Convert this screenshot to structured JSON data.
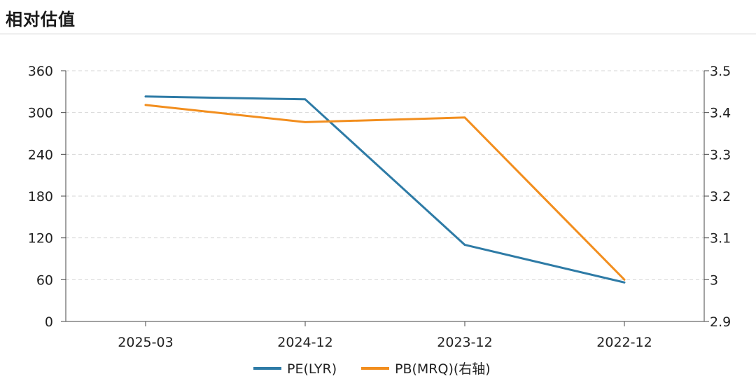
{
  "header": {
    "title": "相对估值"
  },
  "chart_data": {
    "type": "line",
    "categories": [
      "2025-03",
      "2024-12",
      "2023-12",
      "2022-12"
    ],
    "series": [
      {
        "name": "PE(LYR)",
        "axis": "left",
        "color": "#2e7ba6",
        "values": [
          323,
          319,
          110,
          56
        ]
      },
      {
        "name": "PB(MRQ)(右轴)",
        "axis": "right",
        "color": "#f28e1e",
        "values": [
          3.418,
          3.377,
          3.388,
          3.0
        ]
      }
    ],
    "y_left": {
      "min": 0,
      "max": 360,
      "ticks": [
        0,
        60,
        120,
        180,
        240,
        300,
        360
      ],
      "tick_labels": [
        "0",
        "60",
        "120",
        "180",
        "240",
        "300",
        "360"
      ]
    },
    "y_right": {
      "min": 2.9,
      "max": 3.5,
      "ticks": [
        2.9,
        3.0,
        3.1,
        3.2,
        3.3,
        3.4,
        3.5
      ],
      "tick_labels": [
        "2.9",
        "3",
        "3.1",
        "3.2",
        "3.3",
        "3.4",
        "3.5"
      ]
    },
    "grid": true,
    "legend": "bottom-center"
  }
}
